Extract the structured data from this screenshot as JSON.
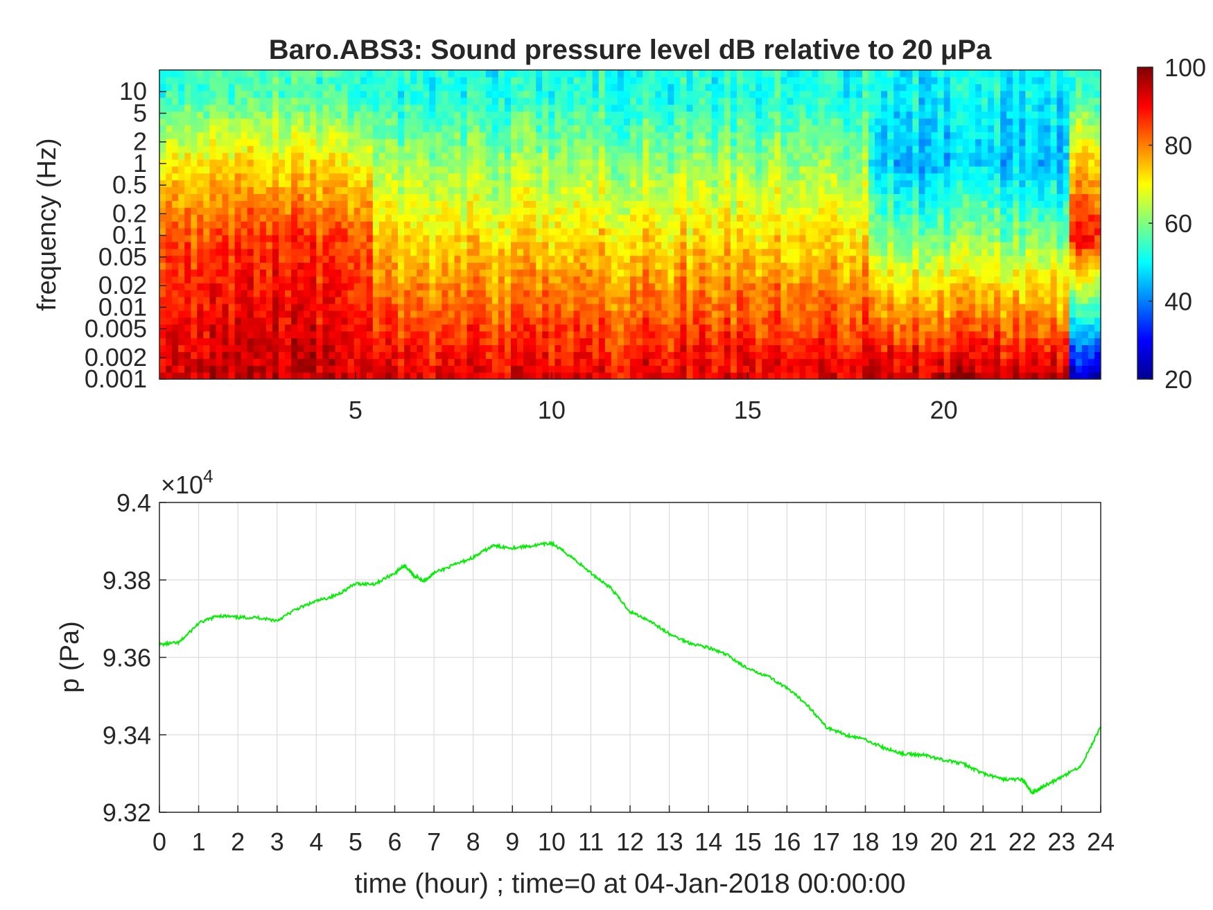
{
  "figure": {
    "top_title": "Baro.ABS3: Sound pressure level dB relative to 20 μPa"
  },
  "chart_data": [
    {
      "type": "heatmap",
      "title": "Baro.ABS3: Sound pressure level dB relative to 20 μPa",
      "xlabel": "",
      "ylabel": "frequency (Hz)",
      "x_range": [
        0,
        24
      ],
      "x_ticks": [
        5,
        10,
        15,
        20
      ],
      "y_scale": "log",
      "y_range": [
        0.001,
        20
      ],
      "y_ticks": [
        0.001,
        0.002,
        0.005,
        0.01,
        0.02,
        0.05,
        0.1,
        0.2,
        0.5,
        1,
        2,
        5,
        10
      ],
      "y_tick_labels": [
        "0.001",
        "0.002",
        "0.005",
        "0.01",
        "0.02",
        "0.05",
        "0.1",
        "0.2",
        "0.5",
        "1",
        "2",
        "5",
        "10"
      ],
      "colorbar": {
        "range": [
          20,
          100
        ],
        "ticks": [
          20,
          40,
          60,
          80,
          100
        ],
        "colormap": "jet"
      },
      "level_summary": [
        {
          "hours": [
            0,
            5.5
          ],
          "db_at_0_001Hz": 95,
          "db_at_0_1Hz": 85,
          "db_at_1Hz": 72,
          "db_at_10Hz": 55
        },
        {
          "hours": [
            5.5,
            18
          ],
          "db_at_0_001Hz": 92,
          "db_at_0_1Hz": 72,
          "db_at_1Hz": 62,
          "db_at_10Hz": 52
        },
        {
          "hours": [
            18,
            23.2
          ],
          "db_at_0_001Hz": 95,
          "db_at_0_1Hz": 60,
          "db_at_1Hz": 46,
          "db_at_10Hz": 50
        },
        {
          "hours": [
            23.2,
            24
          ],
          "db_at_0_001Hz": 25,
          "db_at_0_1Hz": 90,
          "db_at_1Hz": 75,
          "db_at_10Hz": 55
        }
      ],
      "grid": false
    },
    {
      "type": "line",
      "title": "",
      "xlabel": "time (hour) ; time=0 at 04-Jan-2018 00:00:00",
      "ylabel": "p (Pa)",
      "y_multiplier": "×10^4",
      "x_range": [
        0,
        24
      ],
      "x_ticks": [
        0,
        1,
        2,
        3,
        4,
        5,
        6,
        7,
        8,
        9,
        10,
        11,
        12,
        13,
        14,
        15,
        16,
        17,
        18,
        19,
        20,
        21,
        22,
        23,
        24
      ],
      "y_range": [
        9.32,
        9.4
      ],
      "y_ticks": [
        9.32,
        9.34,
        9.36,
        9.38,
        9.4
      ],
      "y_tick_labels": [
        "9.32",
        "9.34",
        "9.36",
        "9.38",
        "9.4"
      ],
      "grid": true,
      "series": [
        {
          "color": "#00ee00",
          "x": [
            0,
            0.5,
            1,
            1.5,
            2,
            2.5,
            3,
            3.5,
            4,
            4.5,
            5,
            5.5,
            6,
            6.25,
            6.5,
            6.75,
            7,
            7.5,
            8,
            8.5,
            9,
            9.5,
            10,
            10.5,
            11,
            11.5,
            12,
            12.5,
            13,
            13.5,
            14,
            14.5,
            15,
            15.5,
            16,
            16.5,
            17,
            17.5,
            18,
            18.5,
            19,
            19.5,
            20,
            20.5,
            21,
            21.5,
            22,
            22.25,
            22.5,
            23,
            23.5,
            24
          ],
          "y": [
            9.3633,
            9.3638,
            9.3688,
            9.3708,
            9.3703,
            9.3703,
            9.3695,
            9.3725,
            9.3745,
            9.376,
            9.379,
            9.379,
            9.3818,
            9.3838,
            9.381,
            9.3798,
            9.3818,
            9.3838,
            9.3858,
            9.3888,
            9.3883,
            9.3888,
            9.3895,
            9.386,
            9.3818,
            9.378,
            9.3718,
            9.3695,
            9.366,
            9.3638,
            9.3625,
            9.3605,
            9.357,
            9.3553,
            9.352,
            9.348,
            9.342,
            9.34,
            9.3388,
            9.3365,
            9.335,
            9.3348,
            9.3335,
            9.3325,
            9.33,
            9.3285,
            9.3285,
            9.325,
            9.3265,
            9.329,
            9.332,
            9.342
          ]
        }
      ]
    }
  ]
}
